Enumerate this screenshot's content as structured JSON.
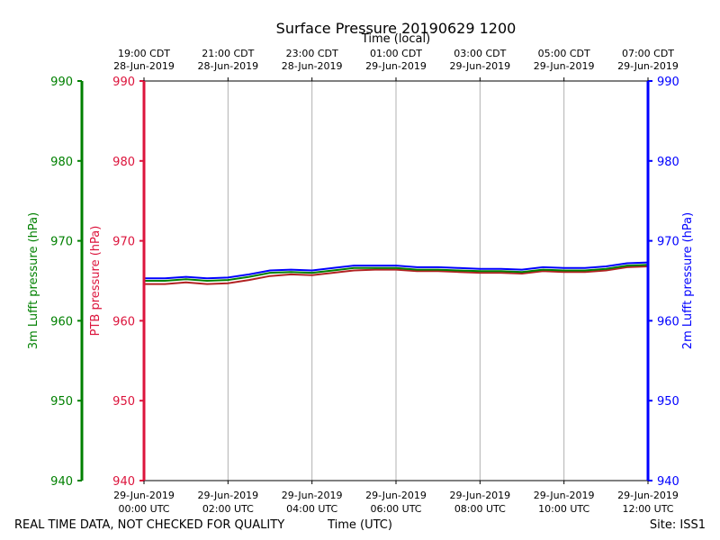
{
  "chart_data": {
    "type": "line",
    "title": "Surface Pressure 20190629 1200",
    "xlabel_top": "Time (local)",
    "xlabel": "Time (UTC)",
    "xlim_hours": [
      0,
      12
    ],
    "top_ticks": [
      {
        "h": 0,
        "line1": "19:00 CDT",
        "line2": "28-Jun-2019"
      },
      {
        "h": 2,
        "line1": "21:00 CDT",
        "line2": "28-Jun-2019"
      },
      {
        "h": 4,
        "line1": "23:00 CDT",
        "line2": "28-Jun-2019"
      },
      {
        "h": 6,
        "line1": "01:00 CDT",
        "line2": "29-Jun-2019"
      },
      {
        "h": 8,
        "line1": "03:00 CDT",
        "line2": "29-Jun-2019"
      },
      {
        "h": 10,
        "line1": "05:00 CDT",
        "line2": "29-Jun-2019"
      },
      {
        "h": 12,
        "line1": "07:00 CDT",
        "line2": "29-Jun-2019"
      }
    ],
    "bottom_ticks": [
      {
        "h": 0,
        "line1": "29-Jun-2019",
        "line2": "00:00 UTC"
      },
      {
        "h": 2,
        "line1": "29-Jun-2019",
        "line2": "02:00 UTC"
      },
      {
        "h": 4,
        "line1": "29-Jun-2019",
        "line2": "04:00 UTC"
      },
      {
        "h": 6,
        "line1": "29-Jun-2019",
        "line2": "06:00 UTC"
      },
      {
        "h": 8,
        "line1": "29-Jun-2019",
        "line2": "08:00 UTC"
      },
      {
        "h": 10,
        "line1": "29-Jun-2019",
        "line2": "10:00 UTC"
      },
      {
        "h": 12,
        "line1": "29-Jun-2019",
        "line2": "12:00 UTC"
      }
    ],
    "y_axes": [
      {
        "id": "lufft3m",
        "label": "3m Lufft pressure (hPa)",
        "color": "#008000",
        "ylim": [
          940,
          990
        ],
        "ticks": [
          940,
          950,
          960,
          970,
          980,
          990
        ]
      },
      {
        "id": "ptb",
        "label": "PTB pressure (hPa)",
        "color": "#dc143c",
        "ylim": [
          940,
          990
        ],
        "ticks": [
          940,
          950,
          960,
          970,
          980,
          990
        ]
      },
      {
        "id": "lufft2m",
        "label": "2m Lufft pressure (hPa)",
        "color": "#0000ff",
        "ylim": [
          940,
          990
        ],
        "ticks": [
          940,
          950,
          960,
          970,
          980,
          990
        ]
      }
    ],
    "grid": true,
    "series": [
      {
        "name": "PTB pressure",
        "color": "#b22222",
        "x": [
          0,
          0.5,
          1,
          1.5,
          2,
          2.5,
          3,
          3.5,
          4,
          4.5,
          5,
          5.5,
          6,
          6.5,
          7,
          7.5,
          8,
          8.5,
          9,
          9.5,
          10,
          10.5,
          11,
          11.5,
          12
        ],
        "values": [
          964.6,
          964.6,
          964.8,
          964.6,
          964.7,
          965.1,
          965.6,
          965.8,
          965.7,
          966.0,
          966.3,
          966.4,
          966.4,
          966.2,
          966.2,
          966.1,
          966.0,
          966.0,
          965.9,
          966.2,
          966.1,
          966.1,
          966.3,
          966.7,
          966.8
        ]
      },
      {
        "name": "3m Lufft pressure",
        "color": "#008000",
        "x": [
          0,
          0.5,
          1,
          1.5,
          2,
          2.5,
          3,
          3.5,
          4,
          4.5,
          5,
          5.5,
          6,
          6.5,
          7,
          7.5,
          8,
          8.5,
          9,
          9.5,
          10,
          10.5,
          11,
          11.5,
          12
        ],
        "values": [
          965.0,
          965.0,
          965.2,
          965.0,
          965.1,
          965.5,
          966.0,
          966.1,
          966.0,
          966.3,
          966.6,
          966.6,
          966.6,
          966.4,
          966.4,
          966.3,
          966.2,
          966.2,
          966.1,
          966.4,
          966.3,
          966.3,
          966.5,
          966.9,
          967.0
        ]
      },
      {
        "name": "2m Lufft pressure",
        "color": "#0000ff",
        "x": [
          0,
          0.5,
          1,
          1.5,
          2,
          2.5,
          3,
          3.5,
          4,
          4.5,
          5,
          5.5,
          6,
          6.5,
          7,
          7.5,
          8,
          8.5,
          9,
          9.5,
          10,
          10.5,
          11,
          11.5,
          12
        ],
        "values": [
          965.3,
          965.3,
          965.5,
          965.3,
          965.4,
          965.8,
          966.3,
          966.4,
          966.3,
          966.6,
          966.9,
          966.9,
          966.9,
          966.7,
          966.7,
          966.6,
          966.5,
          966.5,
          966.4,
          966.7,
          966.6,
          966.6,
          966.8,
          967.2,
          967.3
        ]
      }
    ]
  },
  "footer": {
    "disclaimer": "REAL TIME DATA, NOT CHECKED FOR QUALITY",
    "site": "Site: ISS1"
  }
}
